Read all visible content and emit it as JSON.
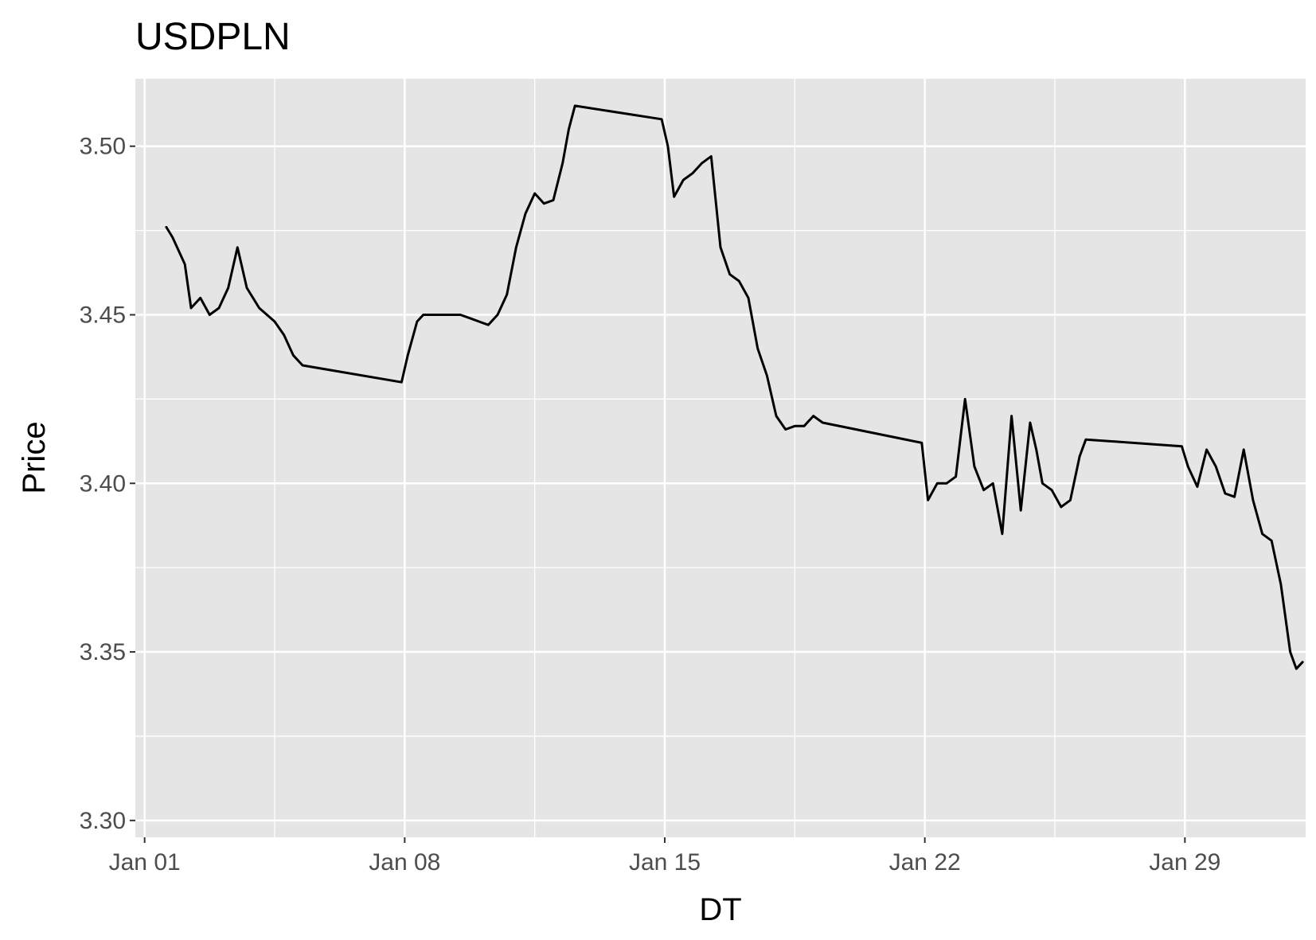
{
  "chart_data": {
    "type": "line",
    "title": "USDPLN",
    "xlabel": "DT",
    "ylabel": "Price",
    "x_ticks": [
      "Jan 01",
      "Jan 08",
      "Jan 15",
      "Jan 22",
      "Jan 29"
    ],
    "y_ticks": [
      "3.30",
      "3.35",
      "3.40",
      "3.45",
      "3.50"
    ],
    "ylim": [
      3.295,
      3.52
    ],
    "xlim": [
      "2018-12-31 18:00",
      "2019-02-01 06:00"
    ],
    "grid": true,
    "legend": "none",
    "line_color": "#000000",
    "panel_color": "#e5e5e5",
    "grid_color": "#ffffff",
    "series": [
      {
        "x": [
          "2019-01-01 14:00",
          "2019-01-01 18:00",
          "2019-01-02 02:00",
          "2019-01-02 06:00",
          "2019-01-02 12:00",
          "2019-01-02 18:00",
          "2019-01-03 00:00",
          "2019-01-03 06:00",
          "2019-01-03 12:00",
          "2019-01-03 18:00",
          "2019-01-04 02:00",
          "2019-01-04 12:00",
          "2019-01-04 18:00",
          "2019-01-05 00:00",
          "2019-01-05 06:00",
          "2019-01-07 22:00",
          "2019-01-08 02:00",
          "2019-01-08 08:00",
          "2019-01-08 12:00",
          "2019-01-08 18:00",
          "2019-01-09 00:00",
          "2019-01-09 06:00",
          "2019-01-09 12:00",
          "2019-01-09 18:00",
          "2019-01-10 00:00",
          "2019-01-10 06:00",
          "2019-01-10 12:00",
          "2019-01-10 18:00",
          "2019-01-11 00:00",
          "2019-01-11 06:00",
          "2019-01-11 12:00",
          "2019-01-11 18:00",
          "2019-01-12 00:00",
          "2019-01-12 06:00",
          "2019-01-12 10:00",
          "2019-01-12 14:00",
          "2019-01-14 22:00",
          "2019-01-15 02:00",
          "2019-01-15 06:00",
          "2019-01-15 12:00",
          "2019-01-15 18:00",
          "2019-01-16 00:00",
          "2019-01-16 06:00",
          "2019-01-16 12:00",
          "2019-01-16 18:00",
          "2019-01-17 00:00",
          "2019-01-17 06:00",
          "2019-01-17 12:00",
          "2019-01-17 18:00",
          "2019-01-18 00:00",
          "2019-01-18 06:00",
          "2019-01-18 12:00",
          "2019-01-18 18:00",
          "2019-01-19 00:00",
          "2019-01-19 06:00",
          "2019-01-21 22:00",
          "2019-01-22 02:00",
          "2019-01-22 08:00",
          "2019-01-22 14:00",
          "2019-01-22 20:00",
          "2019-01-23 02:00",
          "2019-01-23 08:00",
          "2019-01-23 14:00",
          "2019-01-23 20:00",
          "2019-01-24 02:00",
          "2019-01-24 08:00",
          "2019-01-24 14:00",
          "2019-01-24 20:00",
          "2019-01-25 00:00",
          "2019-01-25 04:00",
          "2019-01-25 10:00",
          "2019-01-25 16:00",
          "2019-01-25 22:00",
          "2019-01-26 04:00",
          "2019-01-26 08:00",
          "2019-01-28 22:00",
          "2019-01-29 02:00",
          "2019-01-29 08:00",
          "2019-01-29 14:00",
          "2019-01-29 20:00",
          "2019-01-30 02:00",
          "2019-01-30 08:00",
          "2019-01-30 14:00",
          "2019-01-30 20:00",
          "2019-01-31 02:00",
          "2019-01-31 08:00",
          "2019-01-31 14:00",
          "2019-01-31 20:00",
          "2019-02-01 00:00",
          "2019-02-01 04:00"
        ],
        "y": [
          3.476,
          3.473,
          3.465,
          3.452,
          3.455,
          3.45,
          3.452,
          3.458,
          3.47,
          3.458,
          3.452,
          3.448,
          3.444,
          3.438,
          3.435,
          3.43,
          3.438,
          3.448,
          3.45,
          3.45,
          3.45,
          3.45,
          3.45,
          3.449,
          3.448,
          3.447,
          3.45,
          3.456,
          3.47,
          3.48,
          3.486,
          3.483,
          3.484,
          3.495,
          3.505,
          3.512,
          3.508,
          3.5,
          3.485,
          3.49,
          3.492,
          3.495,
          3.497,
          3.47,
          3.462,
          3.46,
          3.455,
          3.44,
          3.432,
          3.42,
          3.416,
          3.417,
          3.417,
          3.42,
          3.418,
          3.412,
          3.395,
          3.4,
          3.4,
          3.402,
          3.425,
          3.405,
          3.398,
          3.4,
          3.385,
          3.42,
          3.392,
          3.418,
          3.41,
          3.4,
          3.398,
          3.393,
          3.395,
          3.408,
          3.413,
          3.411,
          3.405,
          3.399,
          3.41,
          3.405,
          3.397,
          3.396,
          3.41,
          3.395,
          3.385,
          3.383,
          3.37,
          3.35,
          3.345,
          3.347
        ]
      }
    ]
  }
}
